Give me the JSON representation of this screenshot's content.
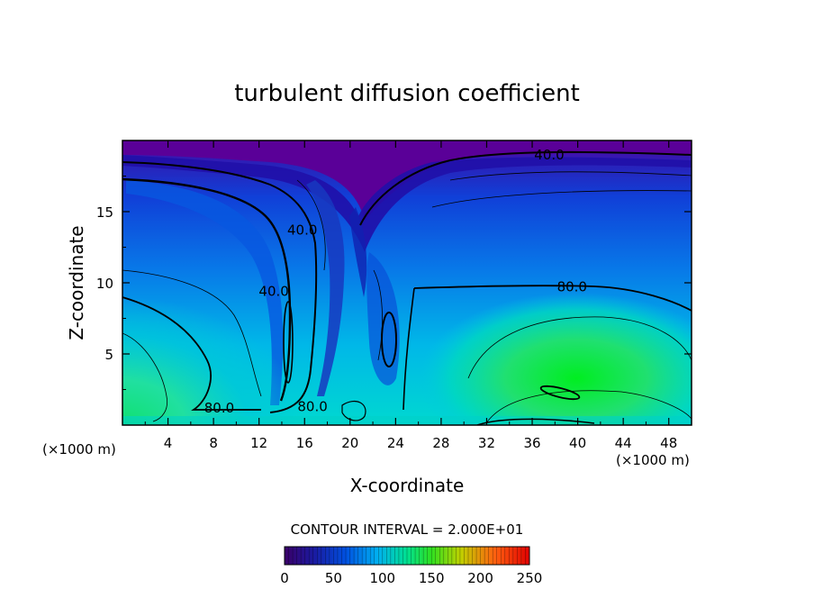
{
  "chart_data": {
    "type": "heatmap",
    "title": "turbulent diffusion coefficient",
    "xlabel": "X-coordinate",
    "ylabel": "Z-coordinate",
    "x_unit_left": "(×1000 m)",
    "x_unit_right": "(×1000 m)",
    "xlim": [
      0,
      50
    ],
    "ylim": [
      0,
      20
    ],
    "x_ticks": [
      4,
      8,
      12,
      16,
      20,
      24,
      28,
      32,
      36,
      40,
      44,
      48
    ],
    "y_ticks": [
      5,
      10,
      15
    ],
    "contour_interval_text": "CONTOUR INTERVAL = 2.000E+01",
    "contour_labels": [
      {
        "text": "40.0",
        "x": 37.5,
        "z": 19.0
      },
      {
        "text": "40.0",
        "x": 15.8,
        "z": 13.7
      },
      {
        "text": "40.0",
        "x": 13.3,
        "z": 9.4
      },
      {
        "text": "80.0",
        "x": 39.5,
        "z": 9.7
      },
      {
        "text": "80.0",
        "x": 8.5,
        "z": 1.2
      },
      {
        "text": "80.0",
        "x": 16.7,
        "z": 1.3
      }
    ],
    "colorbar": {
      "min": 0,
      "max": 250,
      "ticks": [
        0,
        50,
        100,
        150,
        200,
        250
      ],
      "colors": [
        "#3a0068",
        "#1a1aa0",
        "#0050e0",
        "#00b0f0",
        "#00e090",
        "#30e020",
        "#c0d000",
        "#ff6010",
        "#e00000"
      ]
    },
    "field_regions": [
      {
        "desc": "low-value stable layer aloft",
        "value": 20
      },
      {
        "desc": "high-value boundary layer",
        "value": 125
      },
      {
        "desc": "local maximum",
        "x": 38.5,
        "z": 2.5,
        "value": 120
      }
    ]
  }
}
